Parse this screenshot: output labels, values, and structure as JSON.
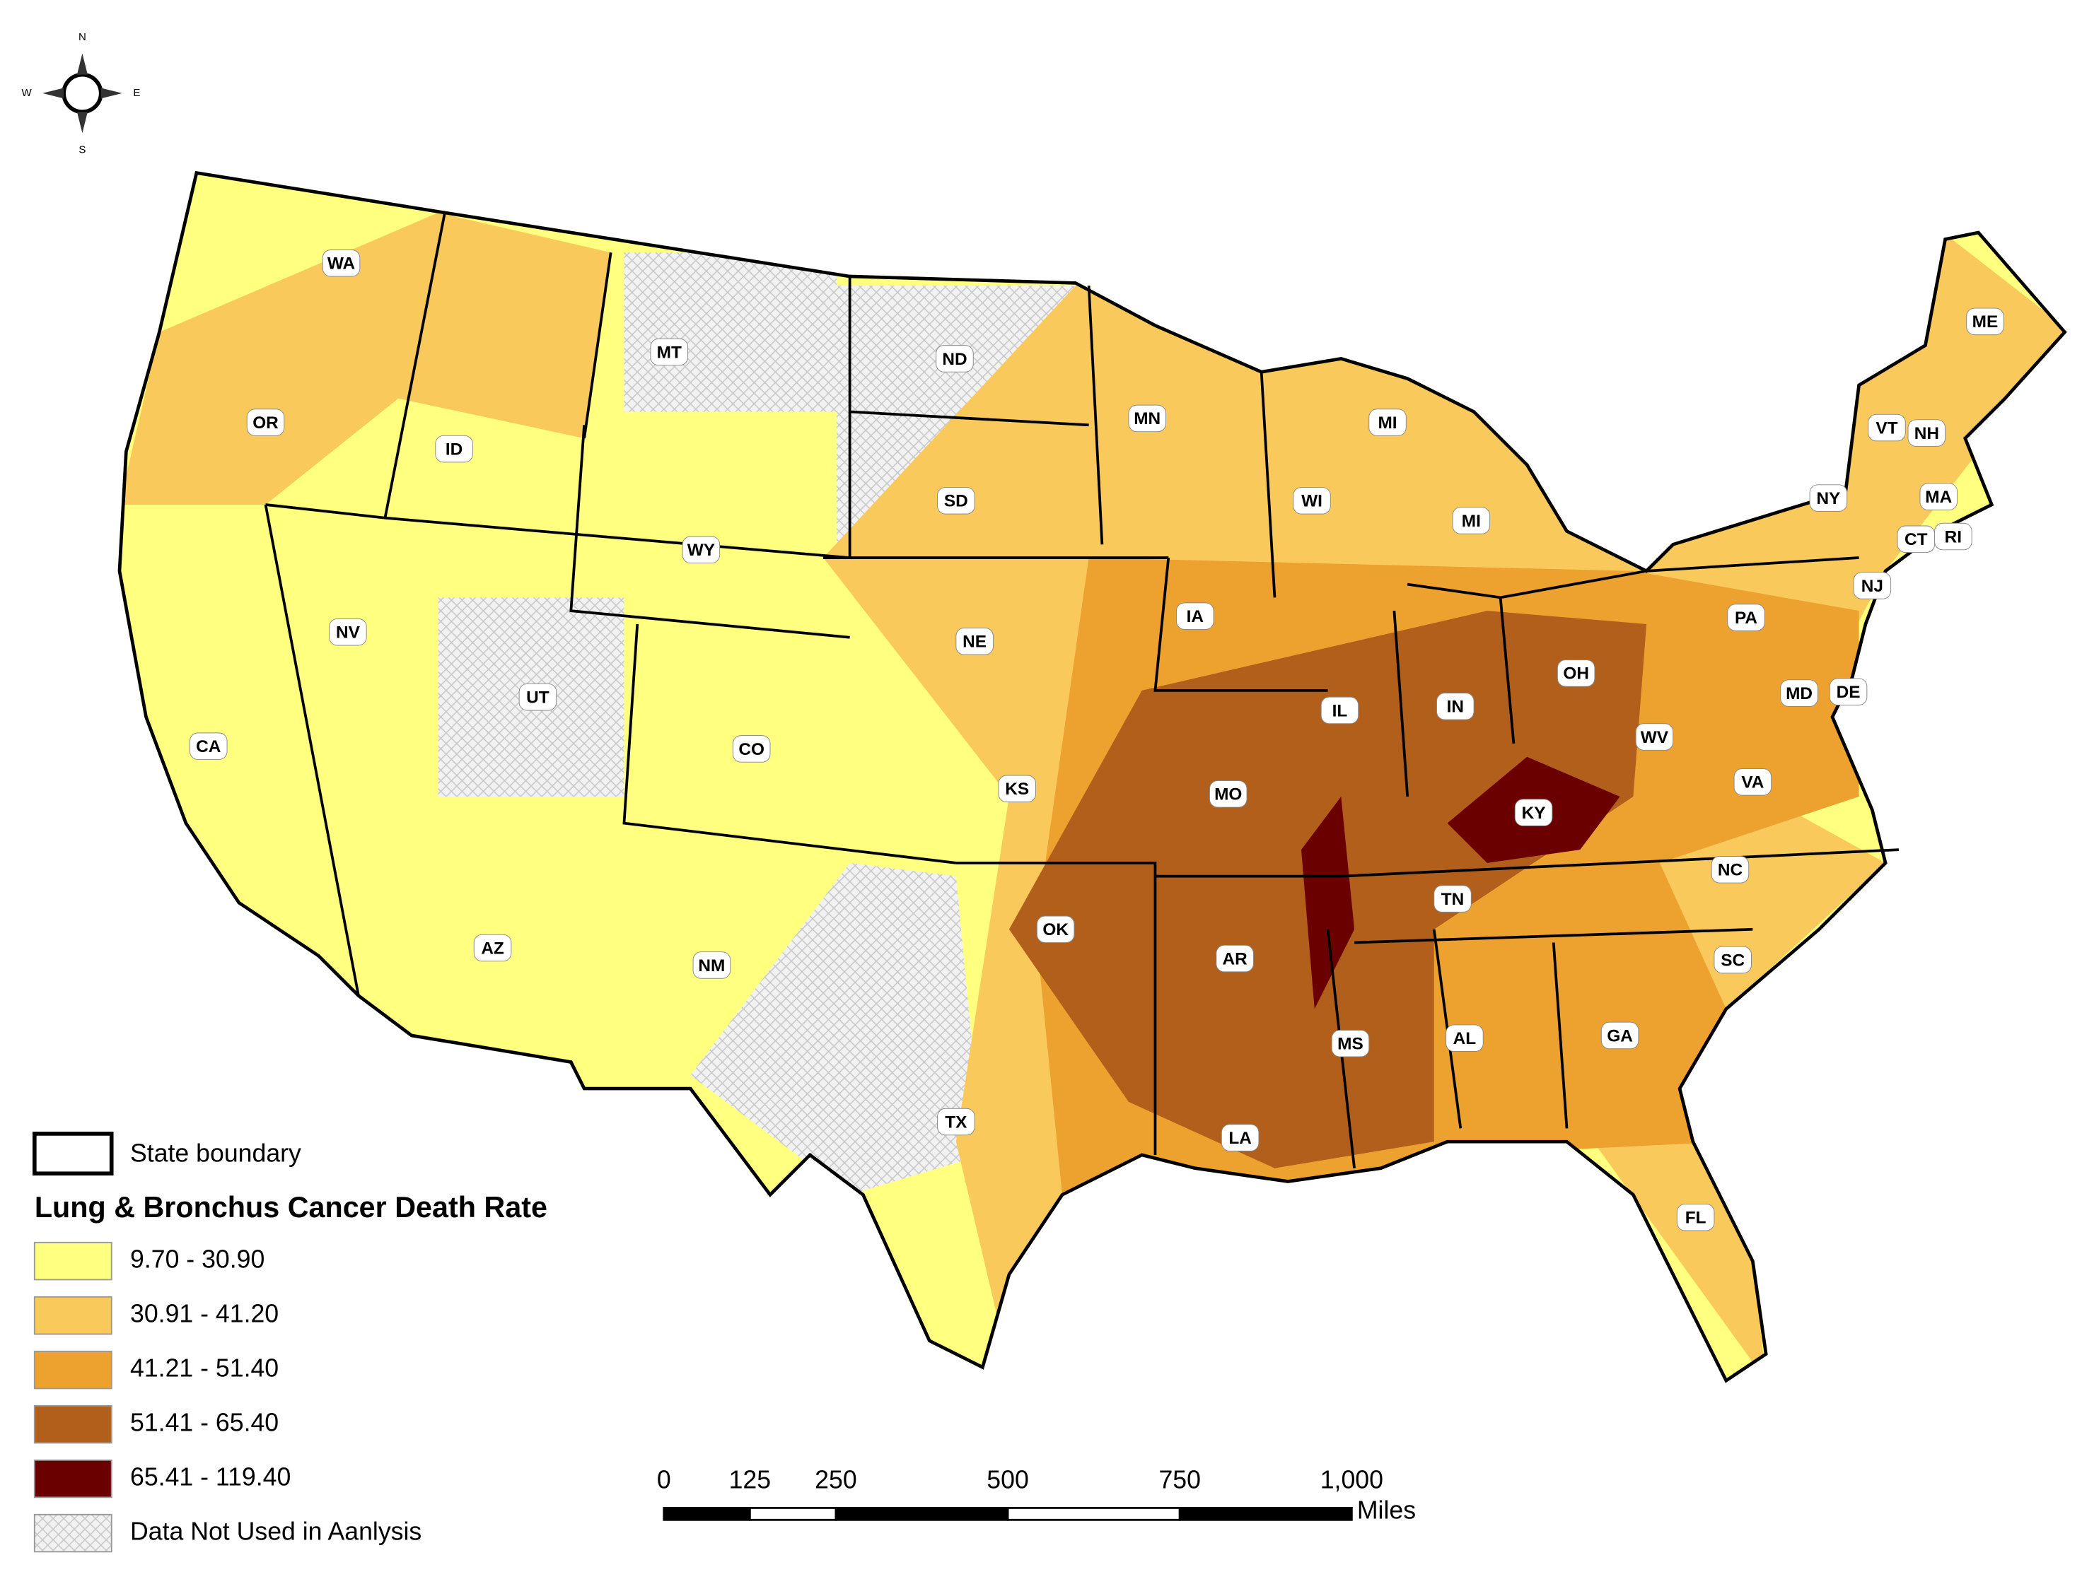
{
  "compass": {
    "north": "N",
    "south": "S",
    "east": "E",
    "west": "W"
  },
  "states": [
    "WA",
    "OR",
    "ID",
    "MT",
    "ND",
    "SD",
    "MN",
    "WI",
    "MI",
    "MI",
    "ME",
    "VT",
    "NH",
    "NY",
    "MA",
    "CT",
    "RI",
    "WY",
    "NV",
    "UT",
    "CO",
    "NE",
    "IA",
    "IL",
    "IN",
    "OH",
    "PA",
    "NJ",
    "MD",
    "DE",
    "VA",
    "WV",
    "KY",
    "CA",
    "KS",
    "MO",
    "AZ",
    "NM",
    "OK",
    "AR",
    "TN",
    "NC",
    "SC",
    "MS",
    "AL",
    "GA",
    "LA",
    "TX",
    "FL"
  ],
  "legend": {
    "boundary_label": "State boundary",
    "title": "Lung & Bronchus Cancer Death Rate",
    "classes": [
      {
        "label": "9.70 - 30.90",
        "color": "#ffff80"
      },
      {
        "label": "30.91 - 41.20",
        "color": "#f9c95c"
      },
      {
        "label": "41.21 - 51.40",
        "color": "#eda12f"
      },
      {
        "label": "51.41 - 65.40",
        "color": "#b25f1b"
      },
      {
        "label": "65.41 - 119.40",
        "color": "#6b0000"
      }
    ],
    "no_data_label": "Data Not Used in Aanlysis"
  },
  "scale_bar": {
    "ticks": [
      0,
      125,
      250,
      500,
      750,
      {
        "value": 1000,
        "label": "1,000"
      }
    ],
    "unit": "Miles"
  }
}
